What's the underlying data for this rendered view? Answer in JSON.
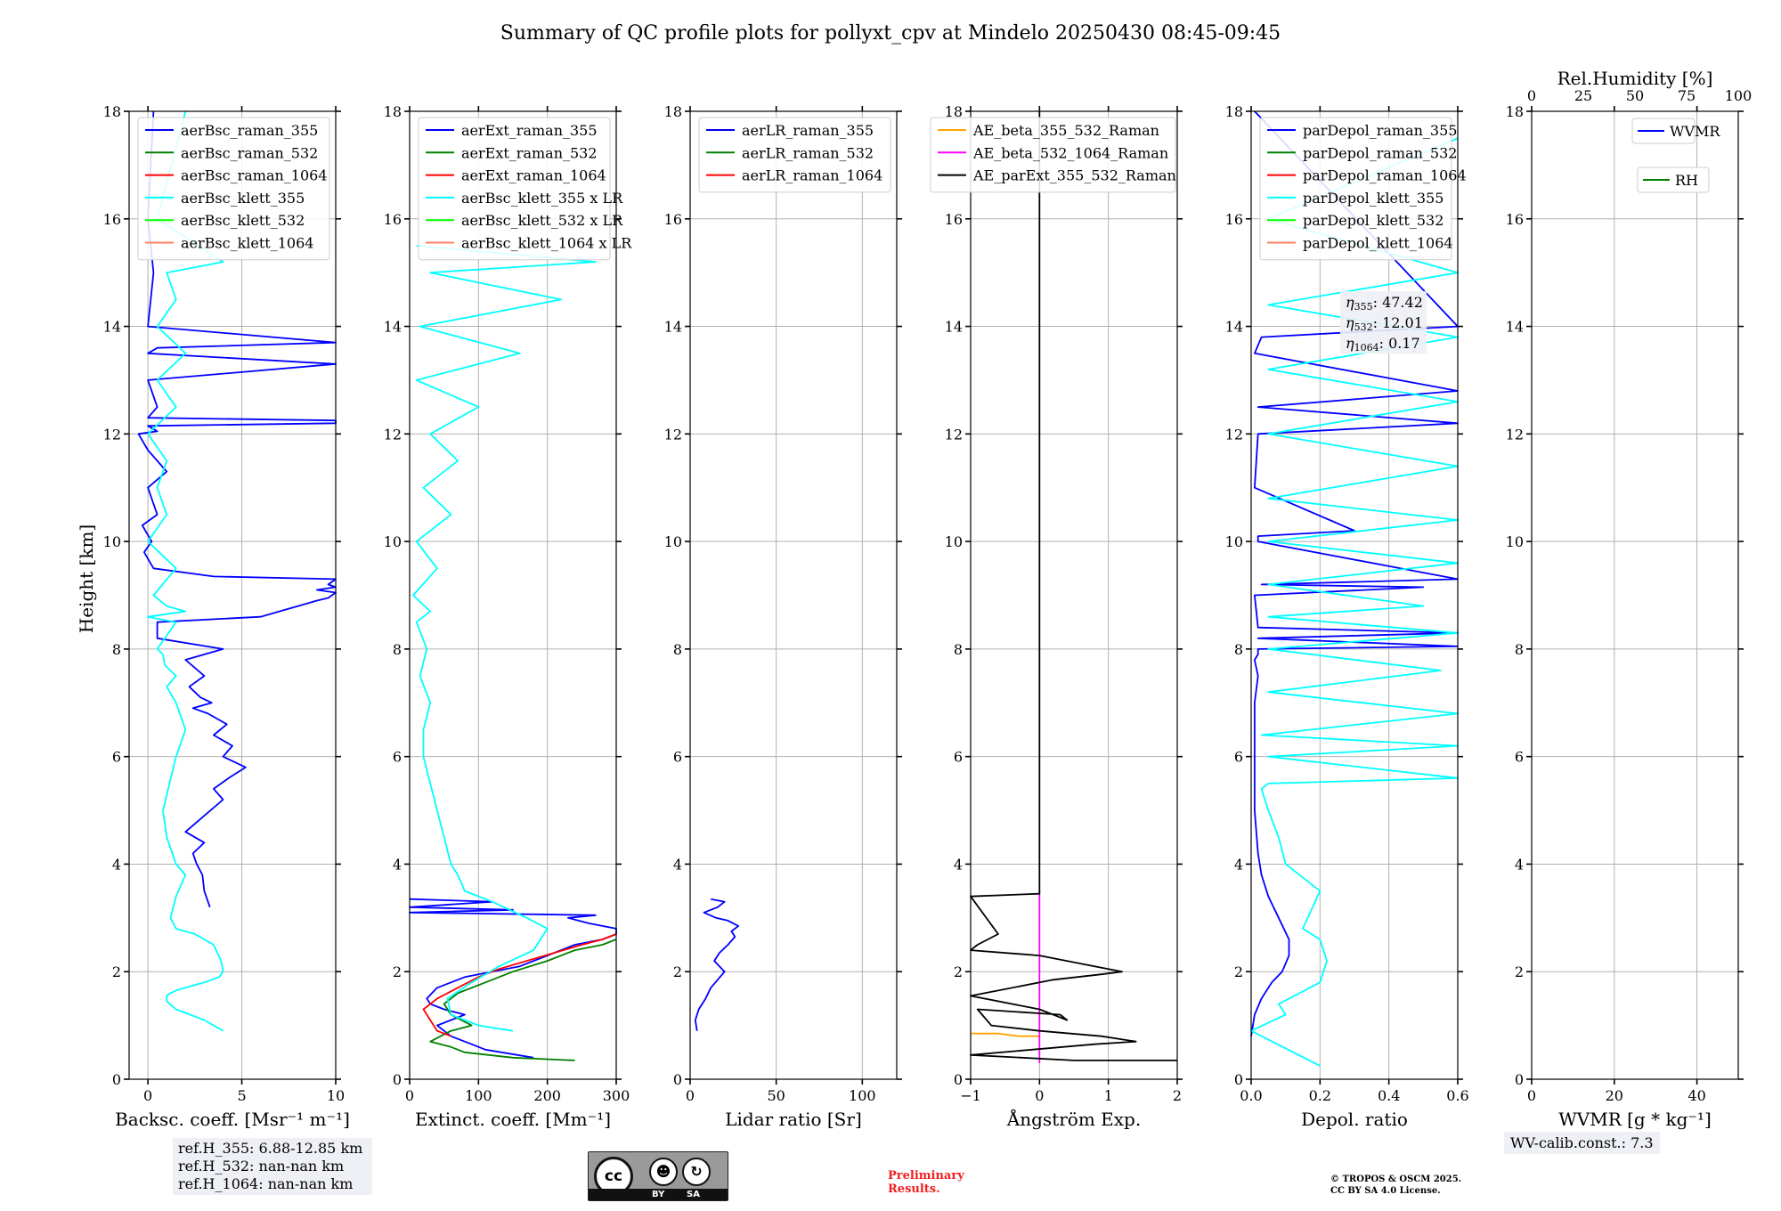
{
  "title": "Summary of QC profile plots for pollyxt_cpv at Mindelo 20250430 08:45-09:45",
  "y_label": "Height [km]",
  "chart_data": [
    {
      "type": "line",
      "id": "backscatter",
      "xlabel": "Backsc. coeff. [Msr⁻¹ m⁻¹]",
      "xlim": [
        -1,
        10
      ],
      "xticks": [
        0,
        5,
        10
      ],
      "ylim": [
        0,
        18
      ],
      "yticks": [
        0,
        2,
        4,
        6,
        8,
        10,
        12,
        14,
        16,
        18
      ],
      "grid": true,
      "legend": "top",
      "series": [
        {
          "name": "aerBsc_raman_355",
          "color": "#0000ff",
          "x": [
            3.3,
            3.0,
            2.9,
            2.6,
            2.4,
            3.0,
            2.0,
            3.0,
            4.0,
            3.5,
            4.3,
            5.2,
            4.0,
            4.5,
            3.5,
            4.2,
            3.2,
            2.4,
            3.4,
            2.8,
            2.2,
            3.0,
            2.0,
            4.0,
            0.5,
            0.5,
            6.0,
            7.0,
            8.0,
            9.0,
            9.6,
            9.8,
            10.0,
            9.0,
            10.0,
            9.6,
            10.0,
            3.5,
            0.3,
            -0.2,
            0.2,
            -0.3,
            0.5,
            0.0,
            1.0,
            0.0,
            -0.5,
            0.5,
            0.0,
            10.0,
            10.0,
            0.0,
            0.5,
            0.0,
            10.0,
            0.0,
            0.5,
            10.0,
            0.0,
            0.3,
            0.0,
            0.3
          ],
          "y": [
            3.2,
            3.5,
            3.8,
            4.0,
            4.2,
            4.4,
            4.6,
            4.9,
            5.2,
            5.4,
            5.6,
            5.8,
            6.0,
            6.2,
            6.4,
            6.6,
            6.8,
            6.9,
            7.0,
            7.1,
            7.3,
            7.5,
            7.8,
            8.0,
            8.2,
            8.5,
            8.6,
            8.7,
            8.8,
            8.9,
            8.95,
            9.0,
            9.05,
            9.1,
            9.15,
            9.2,
            9.3,
            9.35,
            9.5,
            9.8,
            10.0,
            10.3,
            10.5,
            11.0,
            11.3,
            11.7,
            12.0,
            12.05,
            12.15,
            12.2,
            12.25,
            12.3,
            12.5,
            13.0,
            13.3,
            13.5,
            13.6,
            13.7,
            14.0,
            15.0,
            16.0,
            18.0
          ]
        },
        {
          "name": "aerBsc_raman_532",
          "color": "#008000",
          "x": [],
          "y": []
        },
        {
          "name": "aerBsc_raman_1064",
          "color": "#ff0000",
          "x": [],
          "y": []
        },
        {
          "name": "aerBsc_klett_355",
          "color": "#00ffff",
          "x": [
            4.0,
            3.0,
            1.5,
            1.0,
            1.0,
            1.2,
            1.5,
            2.0,
            3.0,
            3.8,
            4.0,
            3.9,
            3.5,
            2.5,
            1.5,
            1.2,
            1.5,
            2.0,
            1.5,
            1.0,
            0.8,
            1.5,
            2.0,
            1.5,
            1.0,
            1.5,
            0.9,
            0.8,
            0.5,
            1.5,
            0.0,
            2.0,
            1.0,
            0.3,
            1.5,
            0.0,
            1.0,
            0.5,
            1.0,
            0.0,
            1.5,
            0.5,
            2.0,
            0.5,
            1.5,
            1.0,
            4.0,
            0.5,
            2.0
          ],
          "y": [
            0.9,
            1.1,
            1.3,
            1.45,
            1.55,
            1.6,
            1.65,
            1.7,
            1.8,
            1.9,
            2.0,
            2.2,
            2.5,
            2.7,
            2.8,
            3.0,
            3.4,
            3.8,
            4.0,
            4.5,
            5.0,
            6.0,
            6.5,
            7.0,
            7.3,
            7.5,
            7.7,
            7.9,
            8.0,
            8.5,
            8.6,
            8.7,
            8.8,
            9.0,
            9.5,
            10.0,
            10.5,
            11.0,
            11.5,
            12.0,
            12.5,
            13.0,
            13.5,
            14.0,
            14.5,
            15.0,
            15.2,
            16.0,
            18.0
          ]
        },
        {
          "name": "aerBsc_klett_532",
          "color": "#00ff00",
          "x": [],
          "y": []
        },
        {
          "name": "aerBsc_klett_1064",
          "color": "#ff8060",
          "x": [],
          "y": []
        }
      ]
    },
    {
      "type": "line",
      "id": "extinction",
      "xlabel": "Extinct. coeff. [Mm⁻¹]",
      "xlim": [
        0,
        300
      ],
      "xticks": [
        0,
        100,
        200,
        300
      ],
      "ylim": [
        0,
        18
      ],
      "yticks": [
        0,
        2,
        4,
        6,
        8,
        10,
        12,
        14,
        16,
        18
      ],
      "grid": true,
      "legend": "top",
      "series": [
        {
          "name": "aerExt_raman_355",
          "color": "#0000ff",
          "x": [
            180,
            110,
            90,
            60,
            40,
            60,
            80,
            50,
            30,
            25,
            40,
            80,
            120,
            160,
            200,
            240,
            280,
            300,
            300,
            260,
            230,
            270,
            0,
            150,
            0,
            120,
            0
          ],
          "y": [
            0.4,
            0.55,
            0.65,
            0.8,
            1.0,
            1.1,
            1.2,
            1.3,
            1.4,
            1.5,
            1.7,
            1.9,
            2.0,
            2.1,
            2.3,
            2.5,
            2.6,
            2.7,
            2.8,
            2.9,
            3.0,
            3.05,
            3.1,
            3.15,
            3.2,
            3.3,
            3.35
          ]
        },
        {
          "name": "aerExt_raman_532",
          "color": "#008000",
          "x": [
            240,
            150,
            80,
            60,
            30,
            60,
            90,
            60,
            50,
            70,
            110,
            150,
            200,
            240,
            280,
            300
          ],
          "y": [
            0.35,
            0.4,
            0.5,
            0.6,
            0.7,
            0.9,
            1.0,
            1.2,
            1.4,
            1.6,
            1.8,
            2.0,
            2.2,
            2.4,
            2.5,
            2.6
          ]
        },
        {
          "name": "aerExt_raman_1064",
          "color": "#ff0000",
          "x": [
            60,
            40,
            30,
            20,
            40,
            70,
            100,
            130,
            170,
            210,
            250,
            280,
            300
          ],
          "y": [
            0.8,
            0.9,
            1.1,
            1.3,
            1.5,
            1.7,
            1.9,
            2.05,
            2.2,
            2.35,
            2.5,
            2.6,
            2.7
          ]
        },
        {
          "name": "aerBsc_klett_355 x LR",
          "color": "#00ffff",
          "x": [
            150,
            100,
            60,
            55,
            90,
            130,
            180,
            200,
            170,
            120,
            80,
            70,
            60,
            50,
            40,
            30,
            20,
            20,
            30,
            15,
            25,
            10,
            30,
            5,
            40,
            10,
            60,
            20,
            70,
            30,
            100,
            10,
            160,
            15,
            220,
            30,
            270,
            10
          ],
          "y": [
            0.9,
            1.0,
            1.2,
            1.5,
            1.8,
            2.1,
            2.4,
            2.8,
            3.0,
            3.3,
            3.5,
            3.8,
            4.0,
            4.5,
            5.0,
            5.5,
            6.0,
            6.5,
            7.0,
            7.5,
            8.0,
            8.5,
            8.7,
            9.0,
            9.5,
            10.0,
            10.5,
            11.0,
            11.5,
            12.0,
            12.5,
            13.0,
            13.5,
            14.0,
            14.5,
            15.0,
            15.2,
            15.5
          ]
        },
        {
          "name": "aerBsc_klett_532 x LR",
          "color": "#00ff00",
          "x": [],
          "y": []
        },
        {
          "name": "aerBsc_klett_1064 x LR",
          "color": "#ff8060",
          "x": [],
          "y": []
        }
      ]
    },
    {
      "type": "line",
      "id": "lidar_ratio",
      "xlabel": "Lidar ratio [Sr]",
      "xlim": [
        0,
        120
      ],
      "xticks": [
        0,
        50,
        100
      ],
      "ylim": [
        0,
        18
      ],
      "yticks": [
        0,
        2,
        4,
        6,
        8,
        10,
        12,
        14,
        16,
        18
      ],
      "grid": true,
      "legend": "top",
      "series": [
        {
          "name": "aerLR_raman_355",
          "color": "#0000ff",
          "x": [
            4,
            3,
            5,
            9,
            12,
            16,
            20,
            17,
            14,
            17,
            22,
            26,
            24,
            28,
            22,
            15,
            8,
            16,
            20,
            12
          ],
          "y": [
            0.9,
            1.1,
            1.3,
            1.5,
            1.7,
            1.85,
            2.0,
            2.1,
            2.2,
            2.35,
            2.5,
            2.65,
            2.75,
            2.85,
            2.95,
            3.0,
            3.1,
            3.2,
            3.3,
            3.35
          ]
        },
        {
          "name": "aerLR_raman_532",
          "color": "#008000",
          "x": [],
          "y": []
        },
        {
          "name": "aerLR_raman_1064",
          "color": "#ff0000",
          "x": [],
          "y": []
        }
      ]
    },
    {
      "type": "line",
      "id": "angstrom",
      "xlabel": "Ångström Exp.",
      "xlim": [
        -1,
        2
      ],
      "xticks": [
        -1,
        0,
        1,
        2
      ],
      "ylim": [
        0,
        18
      ],
      "yticks": [
        0,
        2,
        4,
        6,
        8,
        10,
        12,
        14,
        16,
        18
      ],
      "grid": true,
      "legend": "top-left",
      "series": [
        {
          "name": "AE_beta_355_532_Raman",
          "color": "#ffa500",
          "x": [
            -1,
            -0.6,
            -0.3,
            -0.1,
            0.0
          ],
          "y": [
            0.85,
            0.85,
            0.8,
            0.8,
            0.8
          ]
        },
        {
          "name": "AE_beta_532_1064_Raman",
          "color": "#ff00ff",
          "x": [
            0,
            0
          ],
          "y": [
            0.3,
            3.5
          ]
        },
        {
          "name": "AE_parExt_355_532_Raman",
          "color": "#000000",
          "x": [
            2.0,
            0.5,
            -1,
            0.8,
            1.4,
            0.9,
            0.0,
            -0.7,
            -0.9,
            0.3,
            0.4,
            0.0,
            -1,
            0.2,
            0.9,
            1.2,
            0.8,
            0.0,
            -1,
            -0.9,
            -0.6,
            -1,
            0,
            0,
            0
          ],
          "y": [
            0.35,
            0.35,
            0.45,
            0.65,
            0.7,
            0.8,
            0.9,
            1.0,
            1.3,
            1.2,
            1.1,
            1.3,
            1.55,
            1.85,
            1.95,
            2.0,
            2.1,
            2.3,
            2.4,
            2.5,
            2.7,
            3.4,
            3.45,
            10.0,
            18.0
          ]
        }
      ]
    },
    {
      "type": "line",
      "id": "depol",
      "xlabel": "Depol. ratio",
      "xlim": [
        0.0,
        0.6
      ],
      "xticks": [
        0.0,
        0.2,
        0.4,
        0.6
      ],
      "ylim": [
        0,
        18
      ],
      "yticks": [
        0,
        2,
        4,
        6,
        8,
        10,
        12,
        14,
        16,
        18
      ],
      "grid": true,
      "legend": "top",
      "series": [
        {
          "name": "parDepol_raman_355",
          "color": "#0000ff",
          "x": [
            0.0,
            0.01,
            0.03,
            0.06,
            0.09,
            0.11,
            0.11,
            0.08,
            0.05,
            0.03,
            0.02,
            0.01,
            0.01,
            0.01,
            0.02,
            0.01,
            0.02,
            0.02,
            0.6,
            0.02,
            0.6,
            0.02,
            0.01,
            0.5,
            0.03,
            0.6,
            0.02,
            0.02,
            0.3,
            0.01,
            0.02,
            0.6,
            0.02,
            0.6,
            0.01,
            0.03,
            0.6,
            0.01
          ],
          "y": [
            0.8,
            1.2,
            1.5,
            1.8,
            2.0,
            2.3,
            2.6,
            3.0,
            3.4,
            3.8,
            4.2,
            5.0,
            6.0,
            7.0,
            7.5,
            7.8,
            7.9,
            8.0,
            8.05,
            8.2,
            8.3,
            8.4,
            9.0,
            9.15,
            9.2,
            9.3,
            10.0,
            10.1,
            10.2,
            11.0,
            12.0,
            12.2,
            12.5,
            12.8,
            13.5,
            13.8,
            14.0,
            18.0
          ]
        },
        {
          "name": "parDepol_raman_532",
          "color": "#008000",
          "x": [],
          "y": []
        },
        {
          "name": "parDepol_raman_1064",
          "color": "#ff0000",
          "x": [],
          "y": []
        },
        {
          "name": "parDepol_klett_355",
          "color": "#00ffff",
          "x": [
            0.2,
            0.0,
            0.1,
            0.08,
            0.2,
            0.22,
            0.2,
            0.15,
            0.2,
            0.1,
            0.08,
            0.05,
            0.03,
            0.05,
            0.6,
            0.05,
            0.6,
            0.03,
            0.6,
            0.05,
            0.55,
            0.05,
            0.6,
            0.05,
            0.5,
            0.05,
            0.6,
            0.05,
            0.6,
            0.05,
            0.6,
            0.05,
            0.6,
            0.05,
            0.6,
            0.05,
            0.6,
            0.05,
            0.6
          ],
          "y": [
            0.25,
            0.9,
            1.2,
            1.4,
            1.8,
            2.2,
            2.6,
            2.8,
            3.5,
            4.0,
            4.5,
            5.0,
            5.4,
            5.5,
            5.6,
            6.0,
            6.2,
            6.4,
            6.8,
            7.2,
            7.6,
            8.0,
            8.3,
            8.6,
            8.8,
            9.2,
            9.6,
            10.0,
            10.4,
            10.8,
            11.4,
            12.0,
            12.6,
            13.2,
            13.8,
            14.4,
            15.0,
            16.0,
            17.5
          ]
        },
        {
          "name": "parDepol_klett_532",
          "color": "#00ff00",
          "x": [],
          "y": []
        },
        {
          "name": "parDepol_klett_1064",
          "color": "#ff8060",
          "x": [],
          "y": []
        }
      ],
      "annotation": {
        "lines": [
          {
            "sym": "η",
            "sub": "355",
            "value": ": 47.42"
          },
          {
            "sym": "η",
            "sub": "532",
            "value": ": 12.01"
          },
          {
            "sym": "η",
            "sub": "1064",
            "value": ": 0.17"
          }
        ]
      }
    },
    {
      "type": "line",
      "id": "wvmr",
      "xlabel": "WVMR [g * kg⁻¹]",
      "xlim": [
        0,
        50
      ],
      "xticks": [
        0,
        20,
        40
      ],
      "top_xlabel": "Rel.Humidity [%]",
      "top_xlim": [
        0,
        100
      ],
      "top_xticks": [
        0,
        25,
        50,
        75,
        100
      ],
      "ylim": [
        0,
        18
      ],
      "yticks": [
        0,
        2,
        4,
        6,
        8,
        10,
        12,
        14,
        16,
        18
      ],
      "grid": true,
      "legend": "top-right",
      "series": [
        {
          "name": "WVMR",
          "color": "#0000ff",
          "x": [],
          "y": []
        },
        {
          "name": "RH",
          "color": "#008000",
          "x": [],
          "y": []
        }
      ]
    }
  ],
  "footer": {
    "ref_lines": [
      "ref.H_355: 6.88-12.85 km",
      "ref.H_532: nan-nan km",
      "ref.H_1064: nan-nan km"
    ],
    "wv_calib": "WV-calib.const.: 7.3",
    "preliminary": [
      "Preliminary",
      "Results."
    ],
    "copyright": [
      "© TROPOS & OSCM 2025.",
      "CC BY SA 4.0 License."
    ],
    "cc_badge": {
      "cc": "cc",
      "by": "BY",
      "sa": "SA",
      "icon_by": "person-icon",
      "icon_sa": "share-alike-icon"
    }
  }
}
